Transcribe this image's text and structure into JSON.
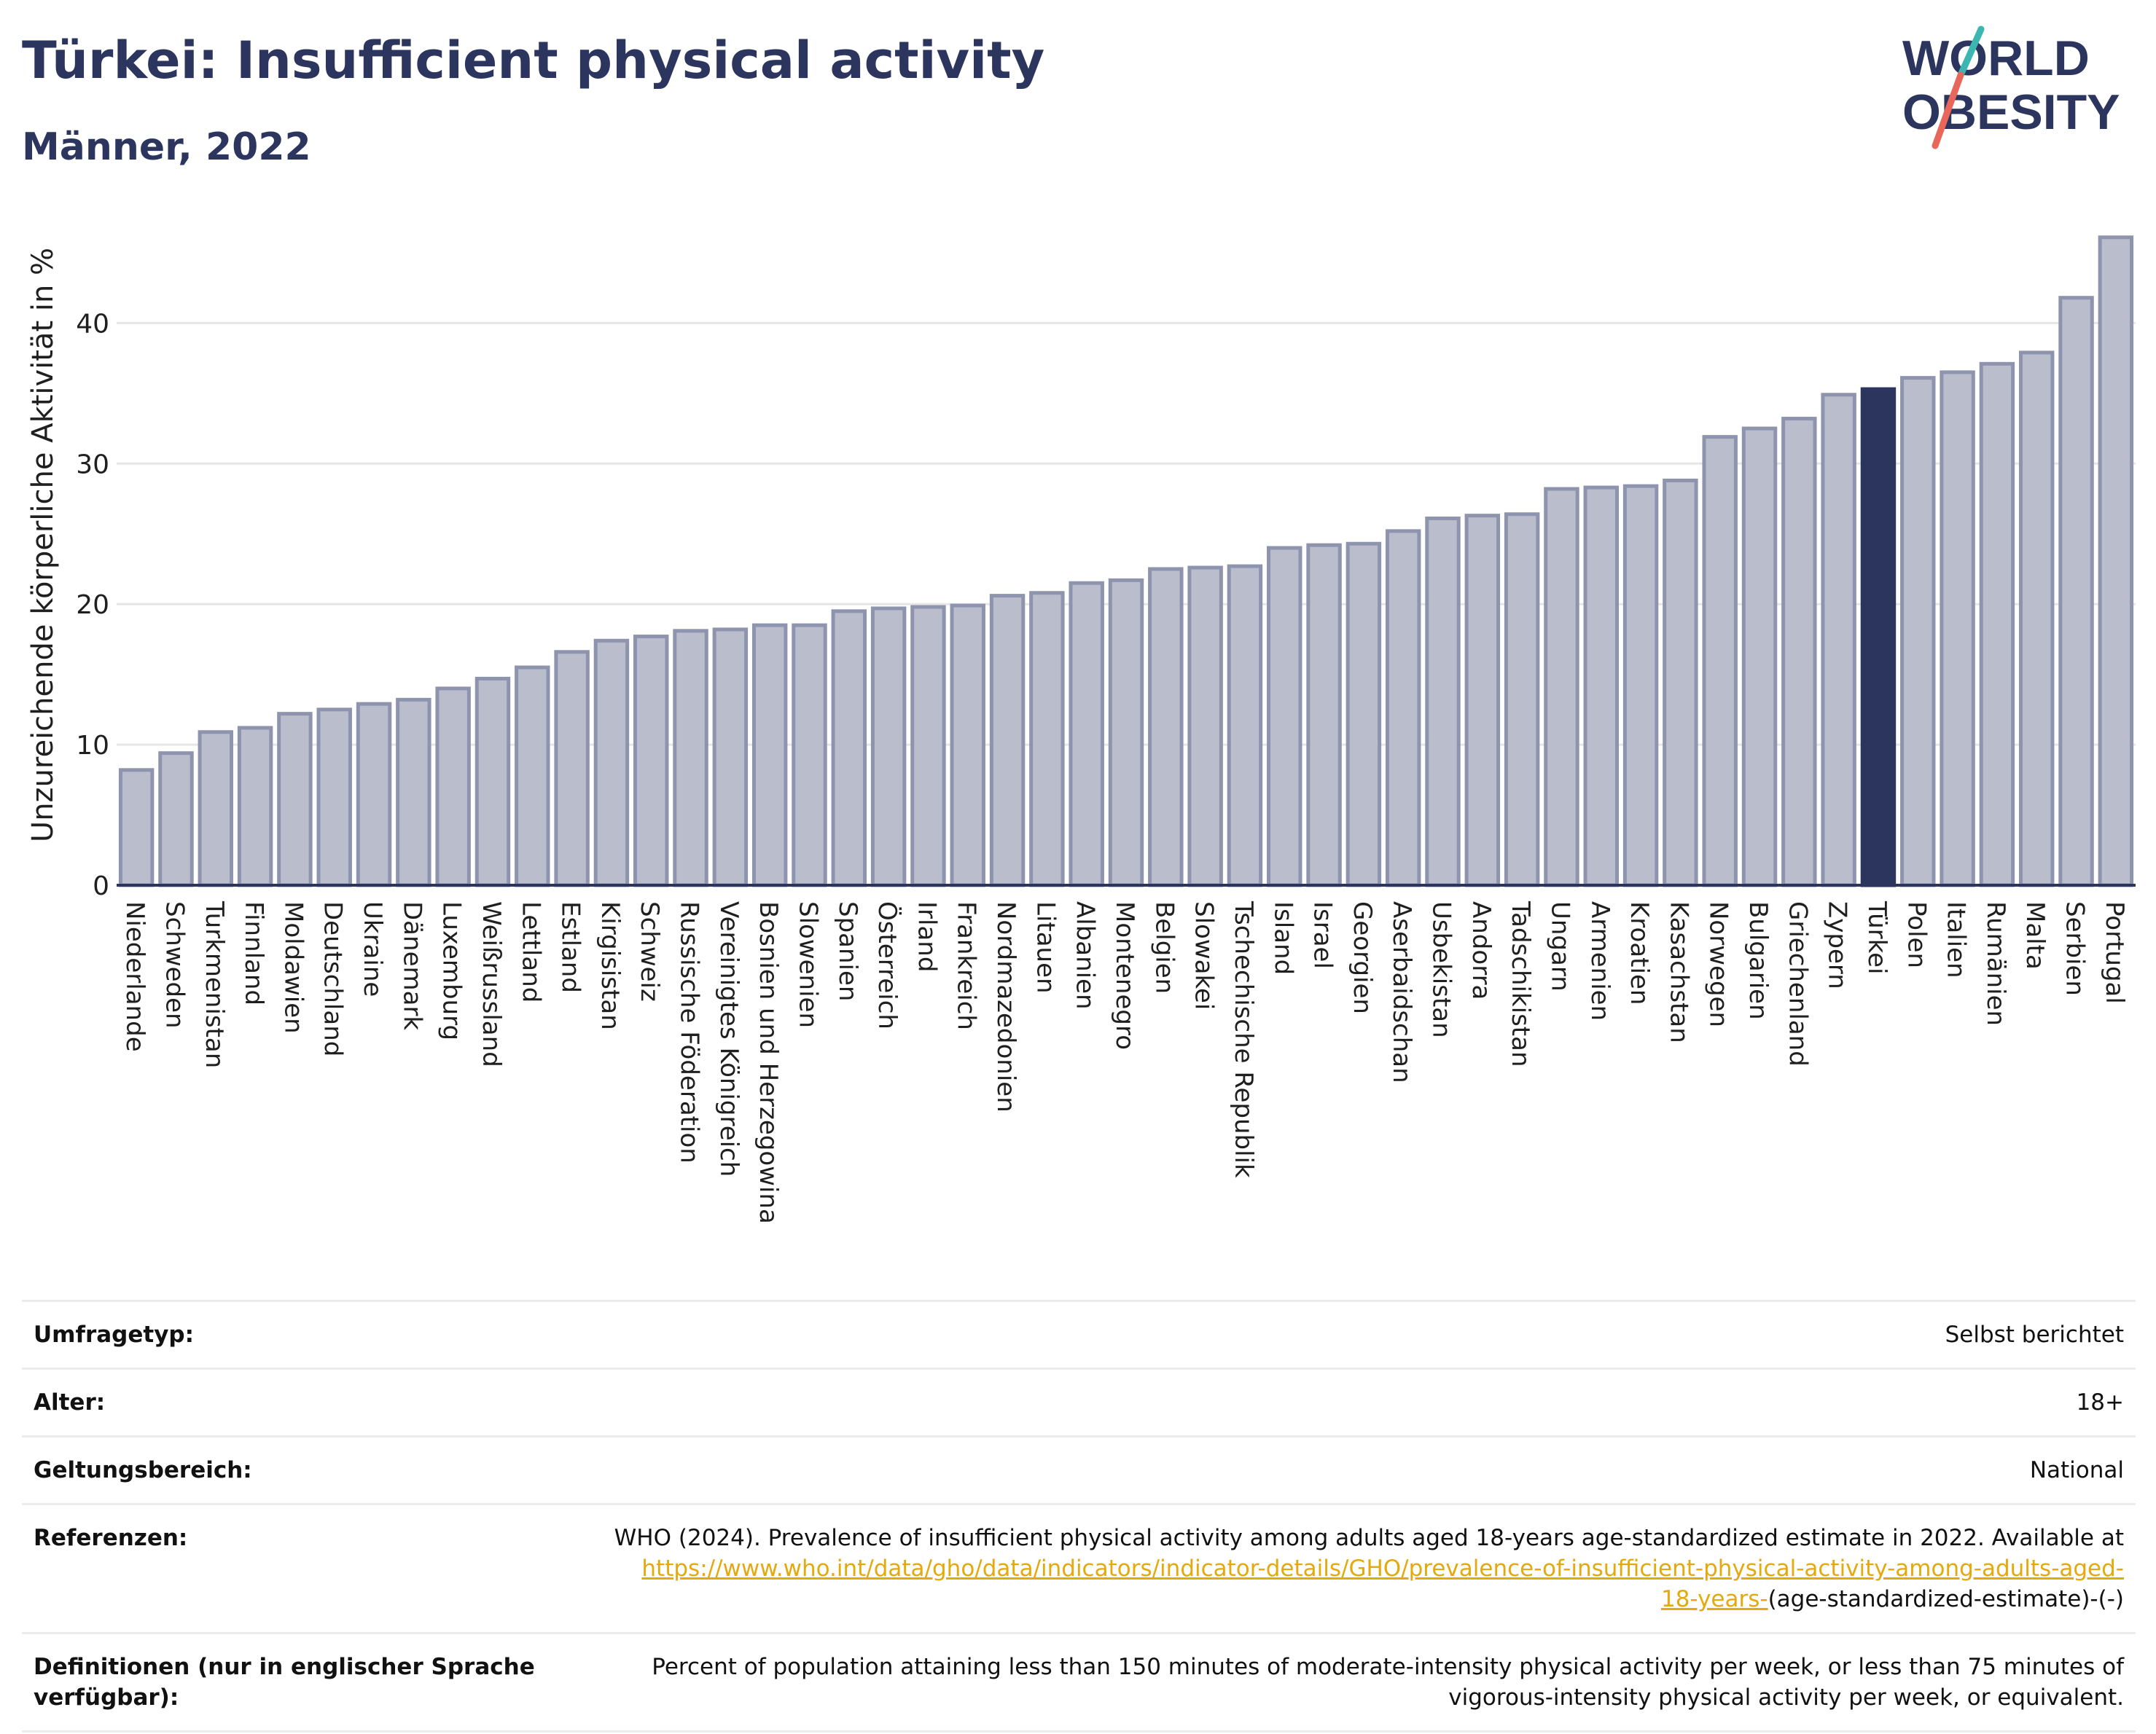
{
  "header": {
    "title": "Türkei: Insufficient physical activity",
    "subtitle": "Männer, 2022"
  },
  "logo": {
    "line1": "WORLD",
    "line2": "OBESITY",
    "colors": {
      "text": "#2b355e",
      "slash_red": "#e8675a",
      "slash_teal": "#3bb6b0"
    }
  },
  "colors": {
    "bar_fill": "#b9bdcc",
    "bar_stroke": "#8e94ae",
    "highlight_fill": "#2b355e",
    "axis": "#2b355e",
    "grid": "#e6e6e6"
  },
  "chart_data": {
    "type": "bar",
    "ylabel": "Unzureichende körperliche Aktivität in %",
    "xlabel": "",
    "ylim": [
      0,
      46.5
    ],
    "yticks": [
      0,
      10,
      20,
      30,
      40
    ],
    "grid": true,
    "highlight": "Türkei",
    "categories": [
      "Niederlande",
      "Schweden",
      "Turkmenistan",
      "Finnland",
      "Moldawien",
      "Deutschland",
      "Ukraine",
      "Dänemark",
      "Luxemburg",
      "Weißrussland",
      "Lettland",
      "Estland",
      "Kirgisistan",
      "Schweiz",
      "Russische Föderation",
      "Vereinigtes Königreich",
      "Bosnien und Herzegowina",
      "Slowenien",
      "Spanien",
      "Österreich",
      "Irland",
      "Frankreich",
      "Nordmazedonien",
      "Litauen",
      "Albanien",
      "Montenegro",
      "Belgien",
      "Slowakei",
      "Tschechische Republik",
      "Island",
      "Israel",
      "Georgien",
      "Aserbaidschan",
      "Usbekistan",
      "Andorra",
      "Tadschikistan",
      "Ungarn",
      "Armenien",
      "Kroatien",
      "Kasachstan",
      "Norwegen",
      "Bulgarien",
      "Griechenland",
      "Zypern",
      "Türkei",
      "Polen",
      "Italien",
      "Rumänien",
      "Malta",
      "Serbien",
      "Portugal"
    ],
    "values": [
      8.2,
      9.4,
      10.9,
      11.2,
      12.2,
      12.5,
      12.9,
      13.2,
      14.0,
      14.7,
      15.5,
      16.6,
      17.4,
      17.7,
      18.1,
      18.2,
      18.5,
      18.5,
      19.5,
      19.7,
      19.8,
      19.9,
      20.6,
      20.8,
      21.5,
      21.7,
      22.5,
      22.6,
      22.7,
      24.0,
      24.2,
      24.3,
      25.2,
      26.1,
      26.3,
      26.4,
      28.2,
      28.3,
      28.4,
      28.8,
      31.9,
      32.5,
      33.2,
      34.9,
      35.3,
      36.1,
      36.5,
      37.1,
      37.9,
      41.8,
      46.1
    ]
  },
  "info": {
    "rows": [
      {
        "label": "Umfragetyp:",
        "value": "Selbst berichtet"
      },
      {
        "label": "Alter:",
        "value": "18+"
      },
      {
        "label": "Geltungsbereich:",
        "value": "National"
      }
    ],
    "references": {
      "label": "Referenzen:",
      "text_before": "WHO (2024). Prevalence of insufficient physical activity among adults aged 18-years age-standardized estimate in 2022. Available at",
      "link_line1": "https://www.who.int/data/gho/data/indicators/indicator-details/GHO/prevalence-of-insufficient-physical-activity-among-adults-aged-",
      "link_line2": "18-years-",
      "text_after": "(age-standardized-estimate)-(-)"
    },
    "definitions": {
      "label": "Definitionen (nur in englischer Sprache verfügbar):",
      "value": "Percent of population attaining less than 150 minutes of moderate-intensity physical activity per week, or less than 75 minutes of vigorous-intensity physical activity per week, or equivalent."
    }
  }
}
